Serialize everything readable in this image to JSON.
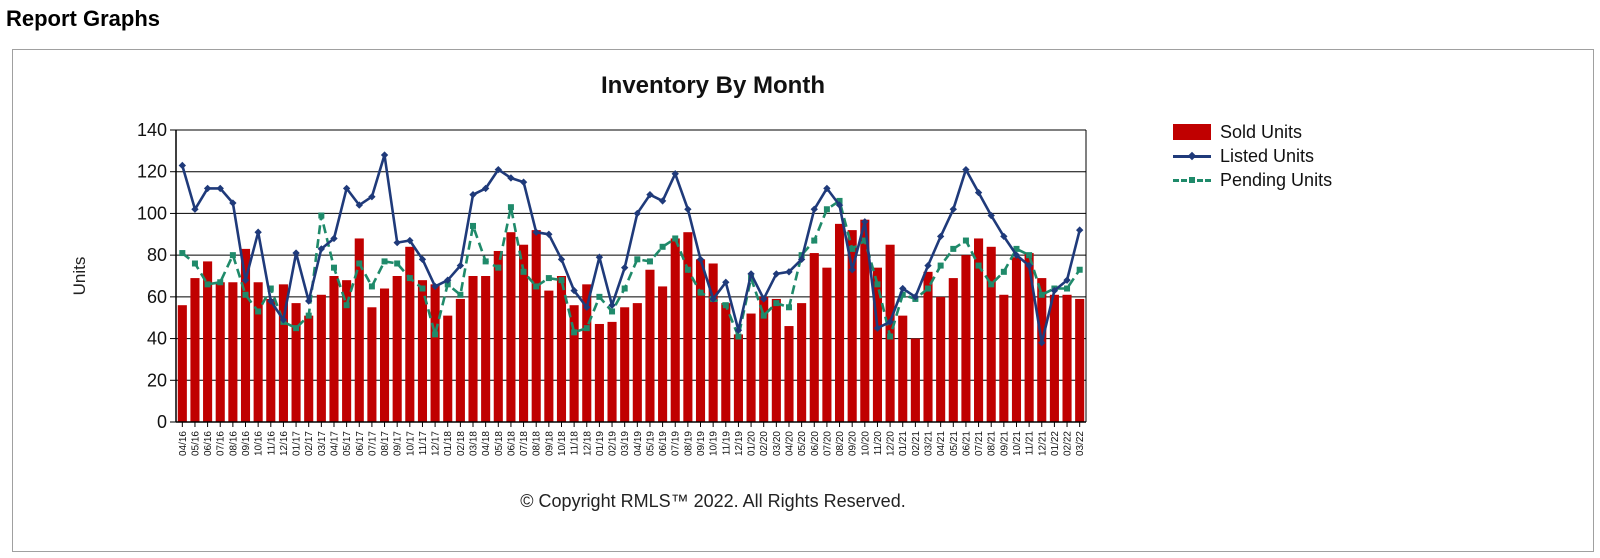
{
  "page": {
    "title": "Report Graphs"
  },
  "chart_data": {
    "type": "bar",
    "title": "Inventory By Month",
    "ylabel": "Units",
    "xlabel": "",
    "ylim": [
      0,
      140
    ],
    "yticks": [
      0,
      20,
      40,
      60,
      80,
      100,
      120,
      140
    ],
    "grid": true,
    "legend_position": "right",
    "categories": [
      "04/16",
      "05/16",
      "06/16",
      "07/16",
      "08/16",
      "09/16",
      "10/16",
      "11/16",
      "12/16",
      "01/17",
      "02/17",
      "03/17",
      "04/17",
      "05/17",
      "06/17",
      "07/17",
      "08/17",
      "09/17",
      "10/17",
      "11/17",
      "12/17",
      "01/18",
      "02/18",
      "03/18",
      "04/18",
      "05/18",
      "06/18",
      "07/18",
      "08/18",
      "09/18",
      "10/18",
      "11/18",
      "12/18",
      "01/19",
      "02/19",
      "03/19",
      "04/19",
      "05/19",
      "06/19",
      "07/19",
      "08/19",
      "09/19",
      "10/19",
      "11/19",
      "12/19",
      "01/20",
      "02/20",
      "03/20",
      "04/20",
      "05/20",
      "06/20",
      "07/20",
      "08/20",
      "09/20",
      "10/20",
      "11/20",
      "12/20",
      "01/21",
      "02/21",
      "03/21",
      "04/21",
      "05/21",
      "06/21",
      "07/21",
      "08/21",
      "09/21",
      "10/21",
      "11/21",
      "12/21",
      "01/22",
      "02/22",
      "03/22"
    ],
    "series": [
      {
        "name": "Sold Units",
        "type": "bar",
        "color": "#c00000",
        "values": [
          56,
          69,
          77,
          67,
          67,
          83,
          67,
          59,
          66,
          57,
          51,
          61,
          70,
          68,
          88,
          55,
          64,
          70,
          84,
          68,
          66,
          51,
          59,
          70,
          70,
          82,
          91,
          85,
          92,
          63,
          70,
          56,
          66,
          47,
          48,
          55,
          57,
          73,
          65,
          88,
          91,
          78,
          76,
          57,
          42,
          52,
          60,
          59,
          46,
          57,
          81,
          74,
          95,
          92,
          97,
          74,
          85,
          51,
          40,
          72,
          60,
          69,
          80,
          88,
          84,
          61,
          79,
          81,
          69,
          61,
          61,
          59
        ]
      },
      {
        "name": "Listed Units",
        "type": "line",
        "color": "#1f3a7a",
        "values": [
          123,
          102,
          112,
          112,
          105,
          68,
          91,
          58,
          49,
          81,
          58,
          83,
          88,
          112,
          104,
          108,
          128,
          86,
          87,
          78,
          65,
          68,
          75,
          109,
          112,
          121,
          117,
          115,
          91,
          90,
          78,
          63,
          55,
          79,
          56,
          74,
          100,
          109,
          106,
          119,
          102,
          78,
          59,
          67,
          44,
          71,
          59,
          71,
          72,
          78,
          102,
          112,
          104,
          73,
          96,
          45,
          48,
          64,
          60,
          75,
          89,
          102,
          121,
          110,
          99,
          89,
          80,
          75,
          38,
          63,
          68,
          92
        ]
      },
      {
        "name": "Pending Units",
        "type": "line",
        "dashed": true,
        "color": "#1f8a6a",
        "values": [
          81,
          76,
          66,
          67,
          80,
          61,
          53,
          64,
          48,
          45,
          51,
          99,
          74,
          56,
          76,
          65,
          77,
          76,
          69,
          64,
          42,
          66,
          61,
          94,
          77,
          74,
          103,
          72,
          65,
          69,
          68,
          43,
          45,
          60,
          53,
          64,
          78,
          77,
          84,
          88,
          73,
          62,
          59,
          56,
          41,
          69,
          51,
          57,
          55,
          80,
          87,
          102,
          106,
          83,
          87,
          66,
          41,
          61,
          59,
          64,
          75,
          83,
          87,
          75,
          66,
          72,
          83,
          80,
          61,
          64,
          64,
          73
        ]
      }
    ]
  },
  "footer": {
    "copyright": "© Copyright RMLS™ 2022.  All Rights Reserved."
  }
}
